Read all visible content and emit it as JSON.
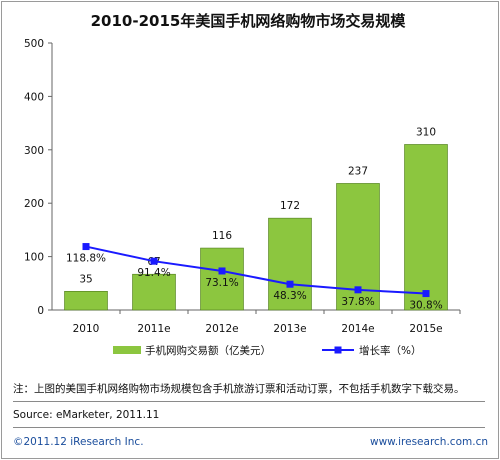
{
  "chart_data": {
    "type": "bar",
    "title": "2010-2015年美国手机网络购物市场交易规模",
    "categories": [
      "2010",
      "2011e",
      "2012e",
      "2013e",
      "2014e",
      "2015e"
    ],
    "series": [
      {
        "name": "手机网购交易额（亿美元）",
        "type": "bar",
        "values": [
          35,
          67,
          116,
          172,
          237,
          310
        ],
        "color": "#8cc63f"
      },
      {
        "name": "增长率（%）",
        "type": "line",
        "values": [
          118.8,
          91.4,
          73.1,
          48.3,
          37.8,
          30.8
        ],
        "labels": [
          "118.8%",
          "91.4%",
          "73.1%",
          "48.3%",
          "37.8%",
          "30.8%"
        ],
        "color": "#1a1aff"
      }
    ],
    "ylim": [
      0,
      500
    ],
    "yticks": [
      0,
      100,
      200,
      300,
      400,
      500
    ],
    "grid": false,
    "legend": "bottom"
  },
  "note": "注：上图的美国手机网络购物市场规模包含手机旅游订票和活动订票，不包括手机数字下载交易。",
  "source": "Source: eMarketer, 2011.11",
  "copyright": "©2011.12 iResearch Inc.",
  "website": "www.iresearch.com.cn"
}
